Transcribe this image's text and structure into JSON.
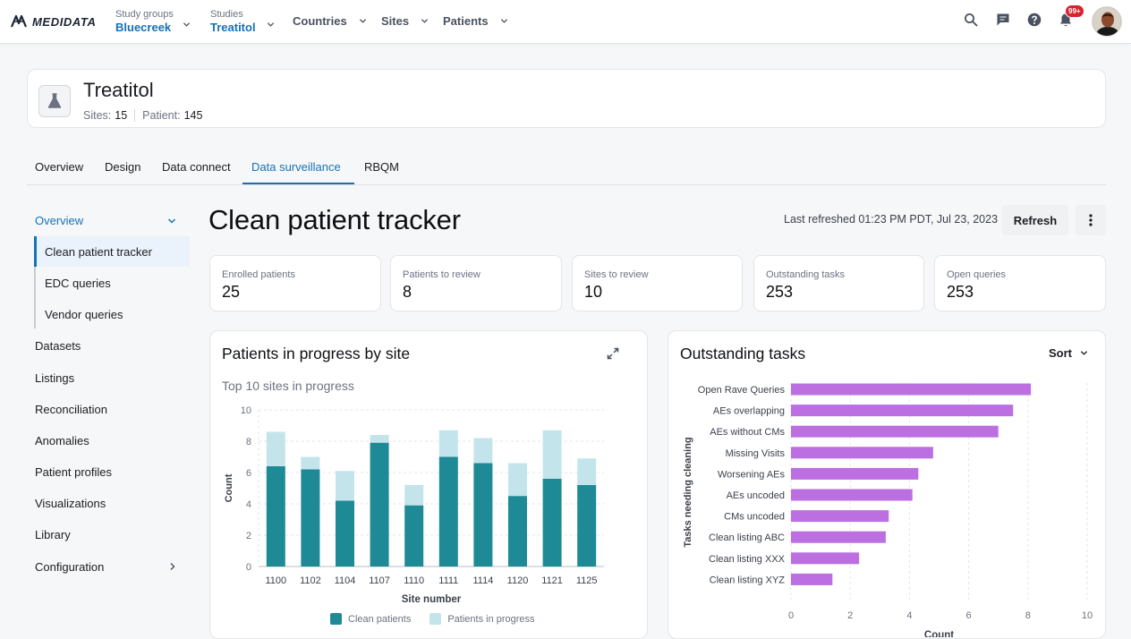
{
  "app": {
    "logo_text": "MEDIDATA",
    "nav": {
      "study_groups_label": "Study groups",
      "study_groups_value": "Bluecreek",
      "studies_label": "Studies",
      "studies_value": "Treatitol",
      "countries": "Countries",
      "sites": "Sites",
      "patients": "Patients"
    },
    "notifications_badge": "99+"
  },
  "study": {
    "name": "Treatitol",
    "sites_label": "Sites:",
    "sites_value": "15",
    "patients_label": "Patient:",
    "patients_value": "145"
  },
  "tabs": [
    {
      "label": "Overview"
    },
    {
      "label": "Design"
    },
    {
      "label": "Data connect"
    },
    {
      "label": "Data surveillance",
      "active": true
    },
    {
      "label": "RBQM"
    }
  ],
  "sidebar": {
    "overview": "Overview",
    "sub_items": [
      "Clean patient tracker",
      "EDC queries",
      "Vendor queries"
    ],
    "items": [
      "Datasets",
      "Listings",
      "Reconciliation",
      "Anomalies",
      "Patient profiles",
      "Visualizations",
      "Library",
      "Configuration"
    ]
  },
  "page": {
    "title": "Clean patient tracker",
    "last_refreshed": "Last refreshed 01:23 PM PDT, Jul 23, 2023",
    "refresh_label": "Refresh"
  },
  "stats": [
    {
      "label": "Enrolled patients",
      "value": "25"
    },
    {
      "label": "Patients to review",
      "value": "8"
    },
    {
      "label": "Sites to review",
      "value": "10"
    },
    {
      "label": "Outstanding tasks",
      "value": "253"
    },
    {
      "label": "Open queries",
      "value": "253"
    }
  ],
  "panels": {
    "left_title": "Patients in progress by site",
    "left_subtitle": "Top 10 sites in progress",
    "right_title": "Outstanding tasks",
    "sort_label": "Sort"
  },
  "colors": {
    "accent": "#1672b5",
    "clean": "#1e8a96",
    "in_progress": "#c4e4ec",
    "tasks": "#bb6fe0",
    "badge": "#d8232f"
  },
  "chart_data": [
    {
      "type": "bar",
      "stacked": true,
      "categories": [
        "1100",
        "1102",
        "1104",
        "1107",
        "1110",
        "1111",
        "1114",
        "1120",
        "1121",
        "1125"
      ],
      "series": [
        {
          "name": "Clean patients",
          "values": [
            6.4,
            6.2,
            4.2,
            7.9,
            3.9,
            7.0,
            6.6,
            4.5,
            5.6,
            5.2
          ]
        },
        {
          "name": "Patients in progress",
          "values": [
            2.2,
            0.8,
            1.9,
            0.5,
            1.3,
            1.7,
            1.6,
            2.1,
            3.1,
            1.7
          ]
        }
      ],
      "xlabel": "Site number",
      "ylabel": "Count",
      "ylim": [
        0,
        10
      ],
      "yticks": [
        0,
        2,
        4,
        6,
        8,
        10
      ],
      "grid": true,
      "legend": "bottom"
    },
    {
      "type": "bar",
      "orientation": "horizontal",
      "categories": [
        "Open Rave Queries",
        "AEs overlapping",
        "AEs without CMs",
        "Missing Visits",
        "Worsening AEs",
        "AEs uncoded",
        "CMs uncoded",
        "Clean listing ABC",
        "Clean listing XXX",
        "Clean listing XYZ"
      ],
      "values": [
        8.1,
        7.5,
        7.0,
        4.8,
        4.3,
        4.1,
        3.3,
        3.2,
        2.3,
        1.4
      ],
      "xlabel": "Count",
      "ylabel": "Tasks needing cleaning",
      "xlim": [
        0,
        10
      ],
      "xticks": [
        0,
        2,
        4,
        6,
        8,
        10
      ],
      "grid": true
    }
  ]
}
